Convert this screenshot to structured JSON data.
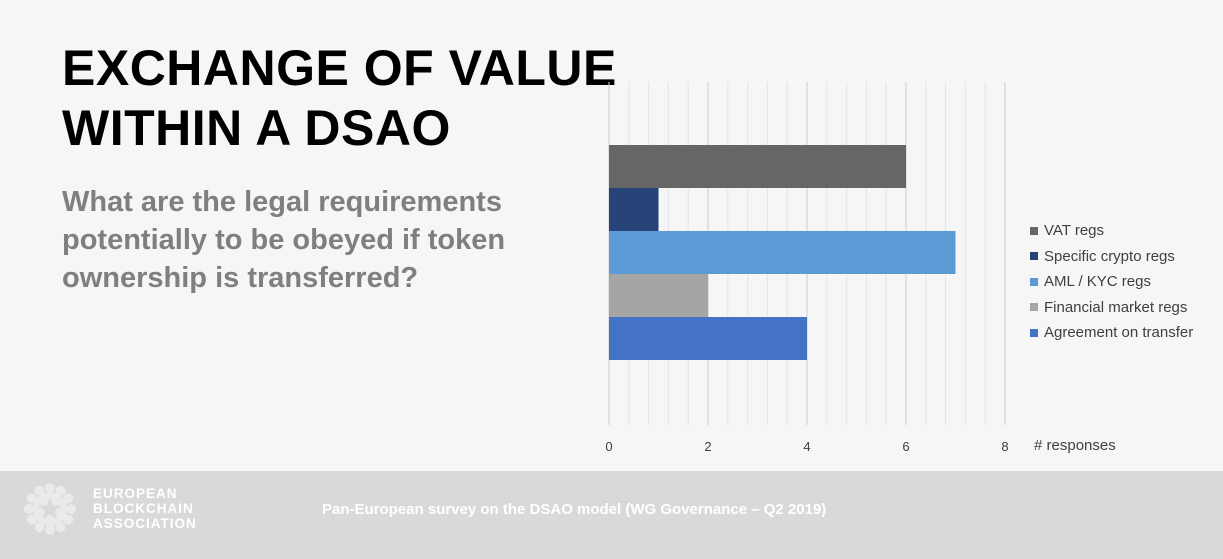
{
  "slide": {
    "title_lines": [
      "EXCHANGE OF VALUE",
      "WITHIN A DSAO"
    ],
    "question_lines": [
      "What are the legal requirements",
      "potentially to be obeyed if token",
      "ownership is transferred?"
    ]
  },
  "chart_data": {
    "type": "bar",
    "orientation": "horizontal",
    "categories": [
      "VAT regs",
      "Specific crypto regs",
      "AML / KYC regs",
      "Financial market regs",
      "Agreement on transfer"
    ],
    "values": [
      6,
      1,
      7,
      2,
      4
    ],
    "colors": [
      "#666666",
      "#264478",
      "#5b9bd5",
      "#a5a5a5",
      "#4472c4"
    ],
    "xlabel": "# responses",
    "xlim": [
      0,
      8
    ],
    "xticks": [
      0,
      2,
      4,
      6,
      8
    ],
    "grid": true,
    "legend": "right"
  },
  "footer": {
    "org_lines": [
      "EUROPEAN",
      "BLOCKCHAIN",
      "ASSOCIATION"
    ],
    "text": "Pan-European survey on the DSAO model (WG Governance – Q2 2019)"
  }
}
